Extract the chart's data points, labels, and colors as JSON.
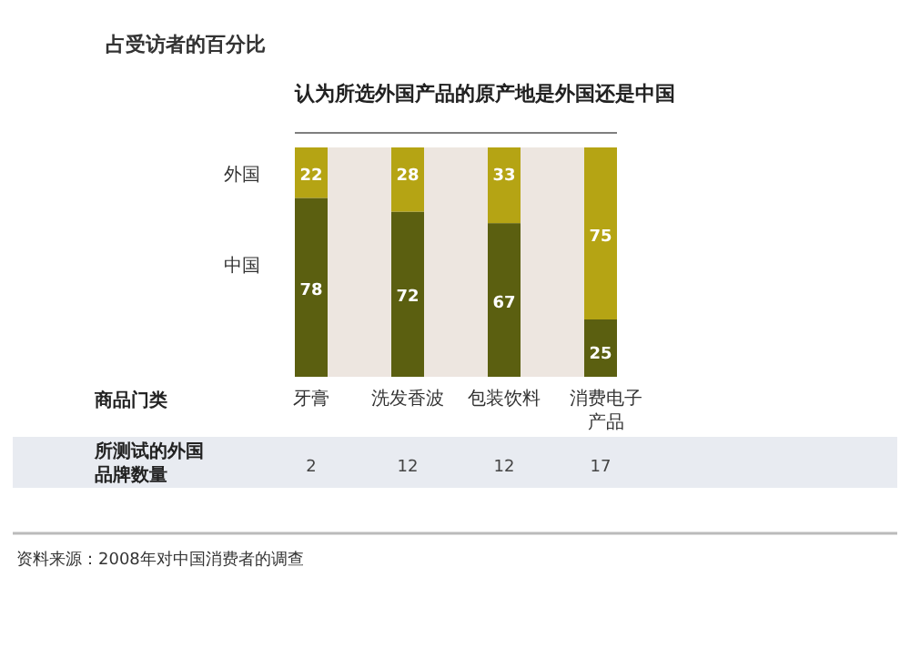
{
  "chart_data": {
    "type": "bar",
    "stacked": true,
    "data_labels": true,
    "title": "认为所选外国产品的原产地是外国还是中国",
    "ylabel": "占受访者的百分比",
    "categories": [
      "牙膏",
      "洗发香波",
      "包装饮料",
      "消费电子产品"
    ],
    "series": [
      {
        "name": "中国",
        "color": "#5b5f10",
        "values": [
          78,
          72,
          67,
          25
        ]
      },
      {
        "name": "外国",
        "color": "#b5a414",
        "values": [
          22,
          28,
          33,
          75
        ]
      }
    ],
    "annotations": [
      "商品门类",
      "所测试的外国品牌数量",
      "2",
      "12",
      "12",
      "17",
      "资料来源：2008年对中国消费者的调查"
    ]
  }
}
